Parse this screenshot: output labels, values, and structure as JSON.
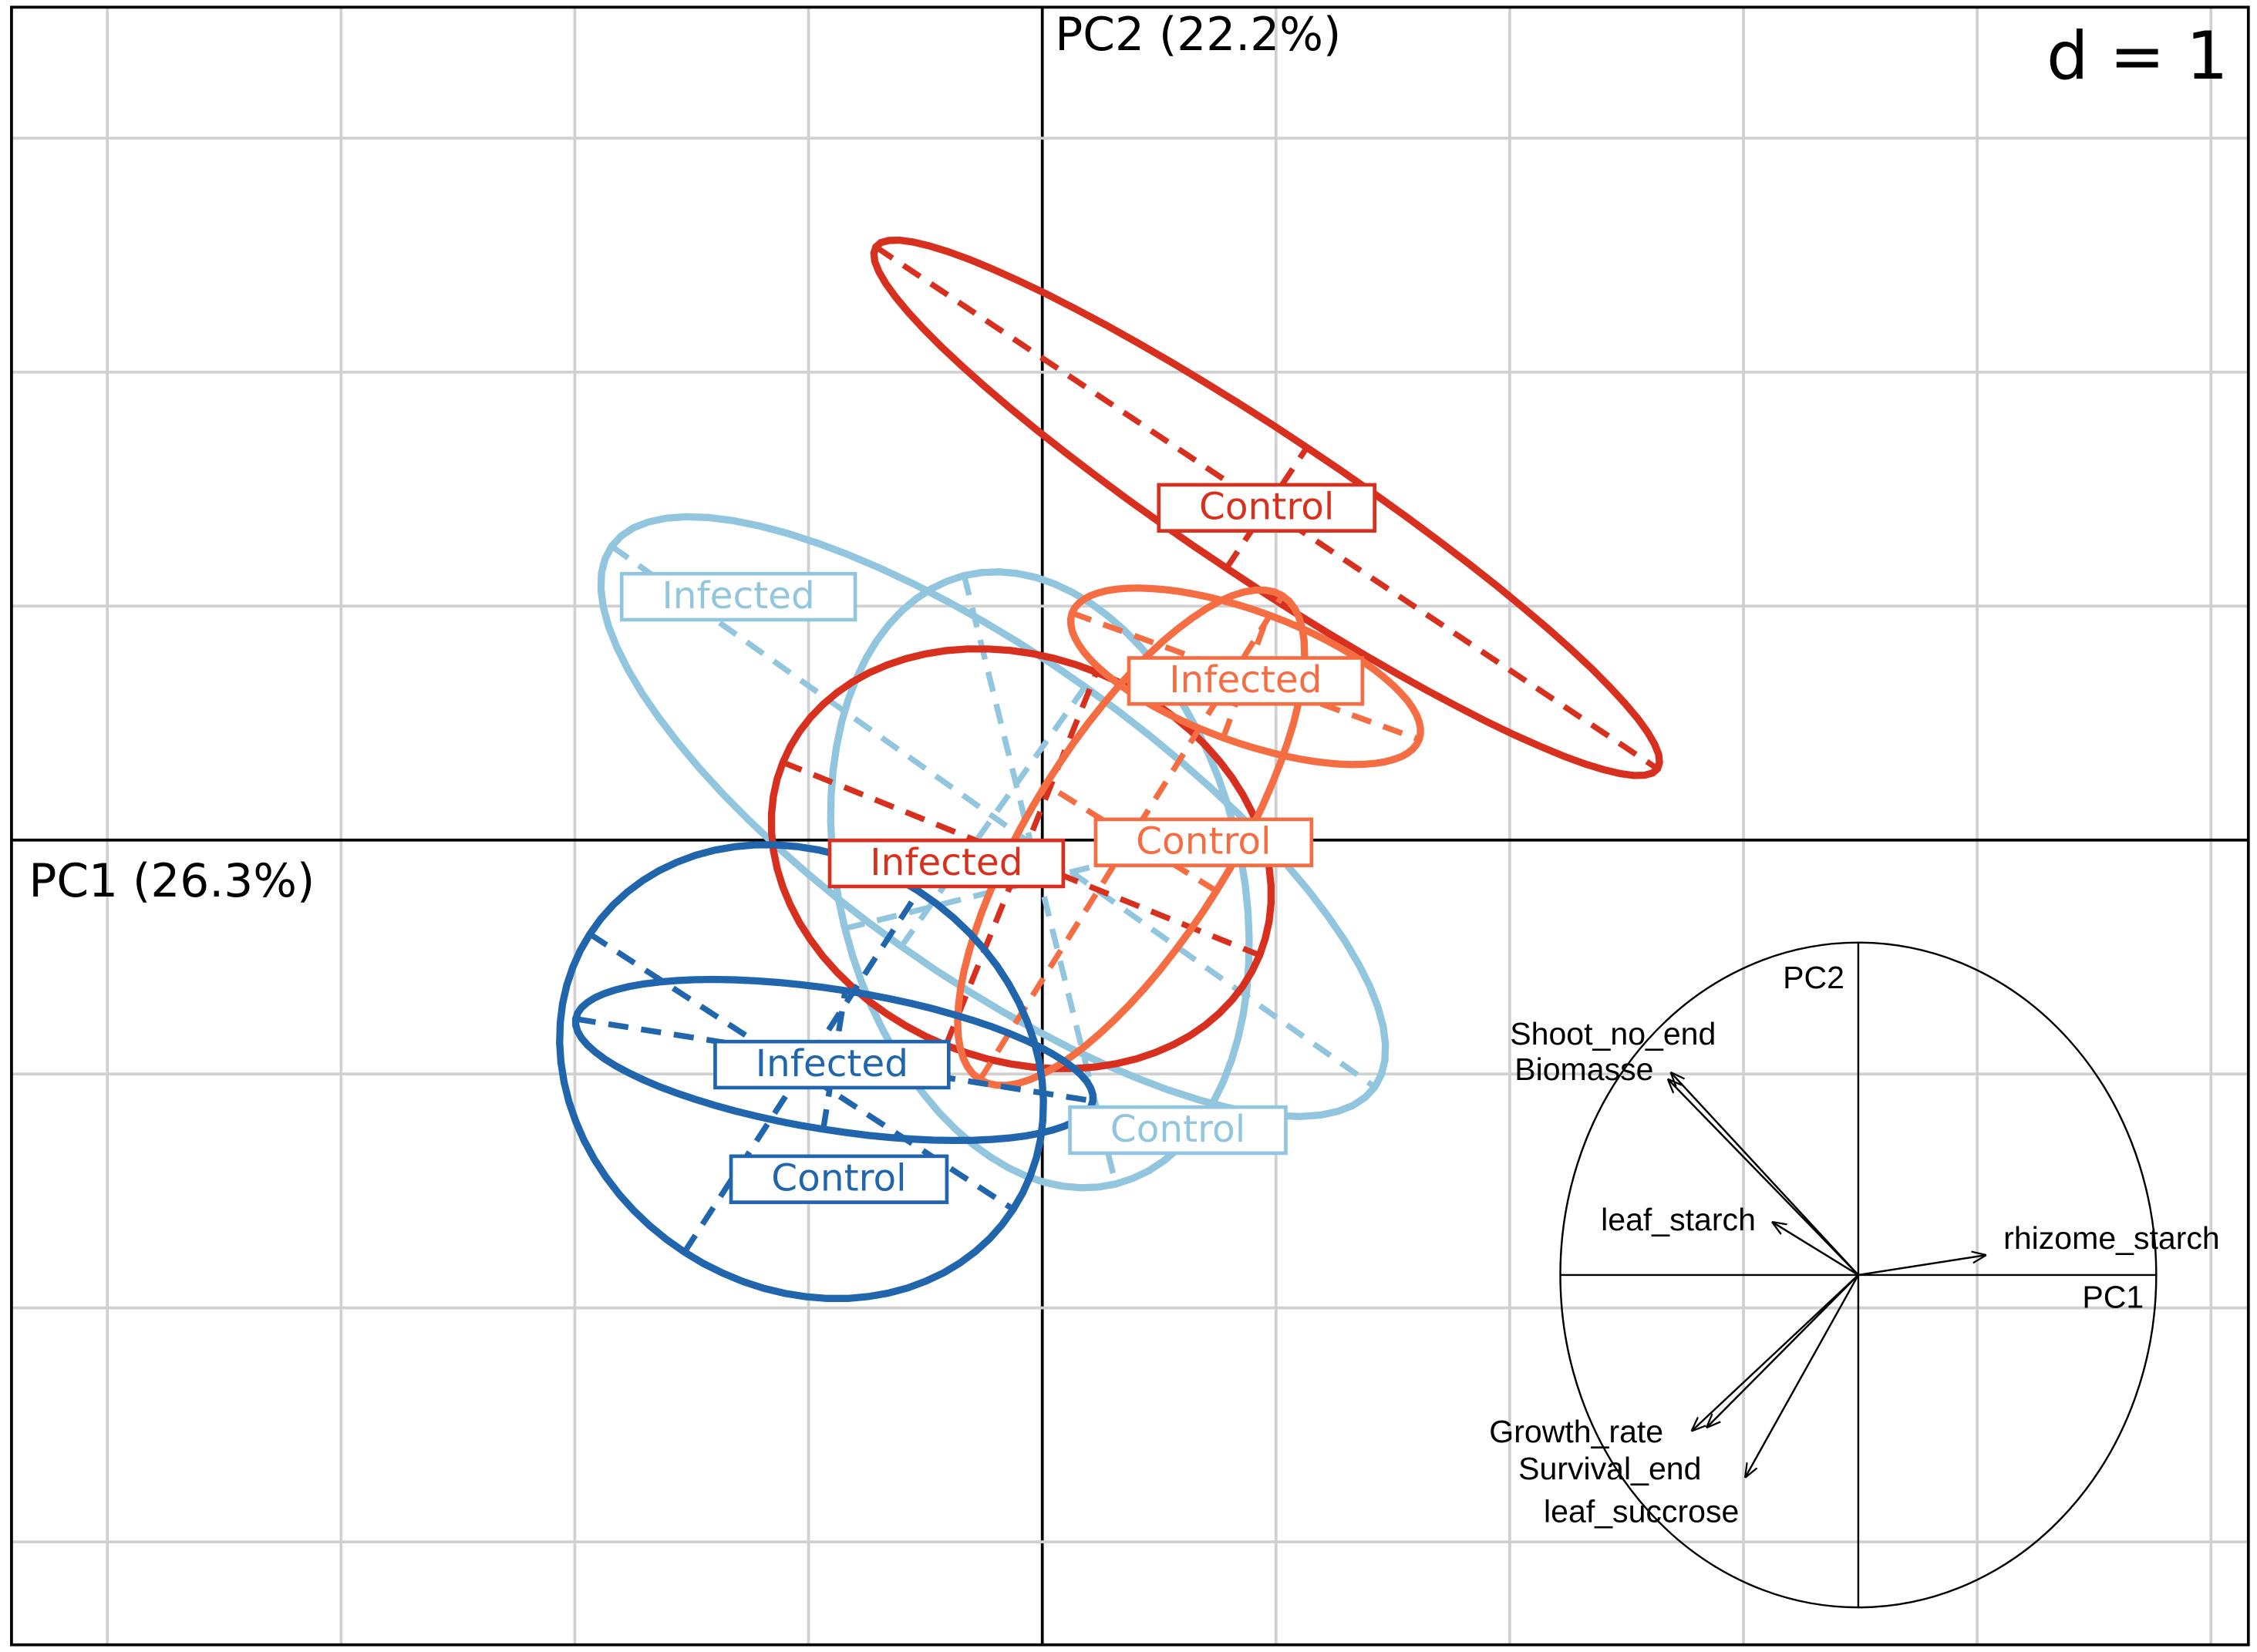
{
  "chart_data": {
    "type": "pca-class",
    "x_axis_label": "PC1 (26.3%)",
    "y_axis_label": "PC2 (22.2%)",
    "scale_label": "d = 1",
    "xlim": [
      -4.41,
      5.16
    ],
    "ylim": [
      -3.44,
      3.56
    ],
    "xticks": [
      -4,
      -3,
      -2,
      -1,
      0,
      1,
      2,
      3,
      4,
      5
    ],
    "yticks": [
      -3,
      -2,
      -1,
      0,
      1,
      2,
      3
    ],
    "grid": true,
    "classes": [
      {
        "name": "Control",
        "color": "#d7301f",
        "center": [
          0.96,
          1.42
        ],
        "axes": [
          2.01,
          0.31
        ],
        "angle": -33.7,
        "label_xy": [
          0.96,
          1.42
        ]
      },
      {
        "name": "Infected",
        "color": "#92c5de",
        "center": [
          -0.21,
          0.1
        ],
        "axes": [
          2.0,
          0.68
        ],
        "angle": -35.3,
        "label_xy": [
          -1.3,
          1.04
        ]
      },
      {
        "name": "Control",
        "color": "#92c5de",
        "center": [
          -0.01,
          -0.17
        ],
        "axes": [
          1.34,
          0.86
        ],
        "angle": -76,
        "label_xy": [
          0.58,
          -1.24
        ]
      },
      {
        "name": "Infected",
        "color": "#d7301f",
        "center": [
          -0.09,
          -0.08
        ],
        "axes": [
          1.1,
          0.86
        ],
        "angle": -22,
        "label_xy": [
          -0.41,
          -0.1
        ]
      },
      {
        "name": "Infected",
        "color": "#f46d43",
        "center": [
          0.87,
          0.7
        ],
        "axes": [
          0.79,
          0.28
        ],
        "angle": -20,
        "label_xy": [
          0.87,
          0.68
        ]
      },
      {
        "name": "Control",
        "color": "#f46d43",
        "center": [
          0.38,
          0.01
        ],
        "axes": [
          1.22,
          0.43
        ],
        "angle": 58,
        "label_xy": [
          0.69,
          -0.01
        ]
      },
      {
        "name": "Infected",
        "color": "#2166ac",
        "center": [
          -0.89,
          -0.94
        ],
        "axes": [
          1.12,
          0.3
        ],
        "angle": -9,
        "label_xy": [
          -0.9,
          -0.96
        ]
      },
      {
        "name": "Control",
        "color": "#2166ac",
        "center": [
          -1.03,
          -0.99
        ],
        "axes": [
          1.08,
          0.92
        ],
        "angle": -33,
        "label_xy": [
          -0.87,
          -1.45
        ]
      }
    ],
    "correlation_circle": {
      "x_label": "PC1",
      "y_label": "PC2",
      "variables": [
        {
          "name": "Shoot_no_end",
          "x": -0.63,
          "y": 0.61
        },
        {
          "name": "Biomasse",
          "x": -0.64,
          "y": 0.59
        },
        {
          "name": "leaf_starch",
          "x": -0.29,
          "y": 0.16
        },
        {
          "name": "rhizome_starch",
          "x": 0.43,
          "y": 0.06
        },
        {
          "name": "Growth_rate",
          "x": -0.56,
          "y": -0.47
        },
        {
          "name": "Survival_end",
          "x": -0.51,
          "y": -0.46
        },
        {
          "name": "leaf_succrose",
          "x": -0.38,
          "y": -0.61
        }
      ]
    }
  }
}
